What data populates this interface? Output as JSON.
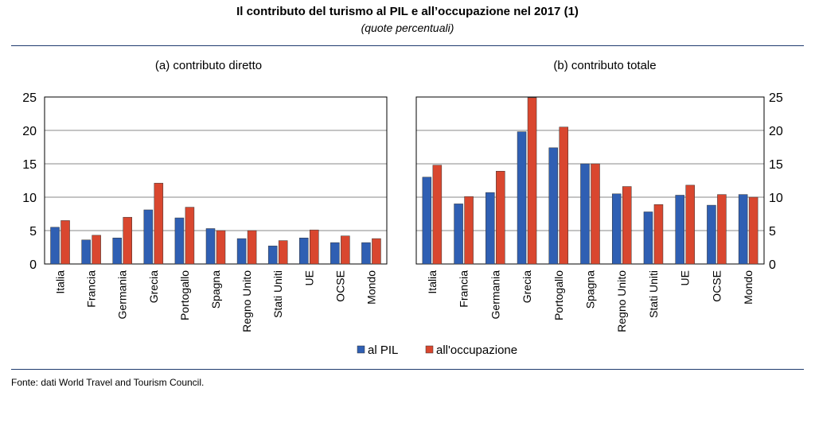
{
  "header": {
    "title": "Il contributo del turismo al PIL e all’occupazione nel 2017 (1)",
    "subtitle": "(quote percentuali)"
  },
  "footer": {
    "source": "Fonte: dati World Travel and Tourism Council."
  },
  "colors": {
    "pil": "#2f5fb3",
    "occupazione": "#d9472f",
    "grid": "#888888",
    "frame": "#000000"
  },
  "chart_data": [
    {
      "type": "bar",
      "title": "(a) contributo diretto",
      "categories": [
        "Italia",
        "Francia",
        "Germania",
        "Grecia",
        "Portogallo",
        "Spagna",
        "Regno Unito",
        "Stati Uniti",
        "UE",
        "OCSE",
        "Mondo"
      ],
      "series": [
        {
          "name": "al PIL",
          "values": [
            5.5,
            3.6,
            3.9,
            8.1,
            6.9,
            5.3,
            3.8,
            2.7,
            3.9,
            3.2,
            3.2
          ]
        },
        {
          "name": "all'occupazione",
          "values": [
            6.5,
            4.3,
            7.0,
            12.1,
            8.5,
            5.0,
            5.0,
            3.5,
            5.1,
            4.2,
            3.8
          ]
        }
      ],
      "ylim": [
        0,
        25
      ],
      "yticks": [
        0,
        5,
        10,
        15,
        20,
        25
      ],
      "axis_side": "left",
      "grid": true
    },
    {
      "type": "bar",
      "title": "(b) contributo totale",
      "categories": [
        "Italia",
        "Francia",
        "Germania",
        "Grecia",
        "Portogallo",
        "Spagna",
        "Regno Unito",
        "Stati Uniti",
        "UE",
        "OCSE",
        "Mondo"
      ],
      "series": [
        {
          "name": "al PIL",
          "values": [
            13.0,
            9.0,
            10.7,
            19.8,
            17.4,
            15.0,
            10.5,
            7.8,
            10.3,
            8.8,
            10.4
          ]
        },
        {
          "name": "all'occupazione",
          "values": [
            14.8,
            10.1,
            13.9,
            24.9,
            20.5,
            15.0,
            11.6,
            8.9,
            11.8,
            10.4,
            10.0
          ]
        }
      ],
      "ylim": [
        0,
        25
      ],
      "yticks": [
        0,
        5,
        10,
        15,
        20,
        25
      ],
      "axis_side": "right",
      "grid": true
    }
  ],
  "legend": {
    "placement": "bottom-center",
    "items": [
      "al PIL",
      "all'occupazione"
    ]
  }
}
